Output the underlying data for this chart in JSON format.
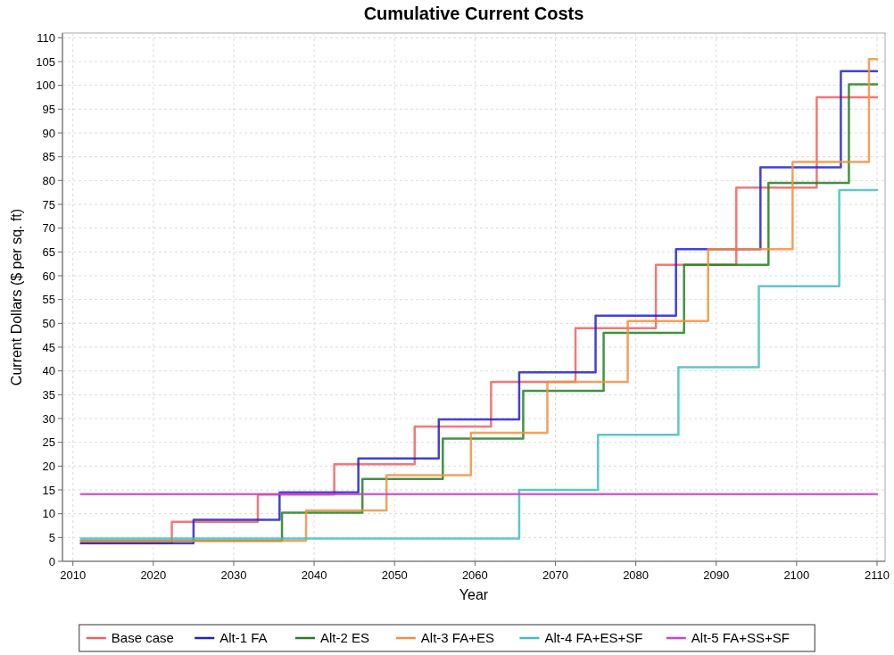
{
  "chart_data": {
    "type": "step",
    "title": "Cumulative Current Costs",
    "xlabel": "Year",
    "ylabel": "Current Dollars ($ per sq. ft)",
    "xlim": [
      2008.7,
      2111
    ],
    "xticks": [
      2010,
      2020,
      2030,
      2040,
      2050,
      2060,
      2070,
      2080,
      2090,
      2100,
      2110
    ],
    "ylim": [
      0,
      111
    ],
    "yticks": [
      0,
      5,
      10,
      15,
      20,
      25,
      30,
      35,
      40,
      45,
      50,
      55,
      60,
      65,
      70,
      75,
      80,
      85,
      90,
      95,
      100,
      105,
      110
    ],
    "grid": true,
    "legend": "bottom",
    "marker": "none",
    "line_style": "solid",
    "series": [
      {
        "name": "Base case",
        "color": "#f06060",
        "x": [
          2011,
          2022.3,
          2033,
          2042.5,
          2052.5,
          2062,
          2072.5,
          2082.5,
          2092.5,
          2102.5,
          2110
        ],
        "values": [
          3.8,
          8.3,
          14,
          20.4,
          28.3,
          37.7,
          49,
          62.3,
          78.5,
          97.5,
          97.5
        ]
      },
      {
        "name": "Alt-1 FA",
        "color": "#2020d0",
        "x": [
          2011,
          2025,
          2035.7,
          2045.5,
          2055.5,
          2065.5,
          2075,
          2085,
          2095.5,
          2105.5,
          2110
        ],
        "values": [
          3.8,
          8.7,
          14.5,
          21.6,
          29.8,
          39.7,
          51.6,
          65.6,
          82.8,
          103,
          103
        ]
      },
      {
        "name": "Alt-2 ES",
        "color": "#208020",
        "x": [
          2011,
          2036,
          2046,
          2056,
          2066,
          2076,
          2086,
          2096.5,
          2106.5,
          2110
        ],
        "values": [
          4.3,
          10.2,
          17.3,
          25.8,
          35.8,
          48,
          62.3,
          79.5,
          100.2,
          100.2
        ]
      },
      {
        "name": "Alt-3 FA+ES",
        "color": "#f09040",
        "x": [
          2011,
          2039,
          2049,
          2059.5,
          2069,
          2079,
          2089,
          2099.5,
          2109,
          2110
        ],
        "values": [
          4.3,
          10.7,
          18.1,
          27,
          37.7,
          50.5,
          65.6,
          83.9,
          105.5,
          105.5
        ]
      },
      {
        "name": "Alt-4 FA+ES+SF",
        "color": "#40c0c0",
        "x": [
          2011,
          2065.5,
          2075.3,
          2085.3,
          2095.3,
          2105.3,
          2110
        ],
        "values": [
          4.8,
          15,
          26.6,
          40.8,
          57.8,
          78,
          78
        ]
      },
      {
        "name": "Alt-5 FA+SS+SF",
        "color": "#d040d0",
        "x": [
          2011,
          2110
        ],
        "values": [
          14.1,
          14.1
        ]
      }
    ]
  }
}
